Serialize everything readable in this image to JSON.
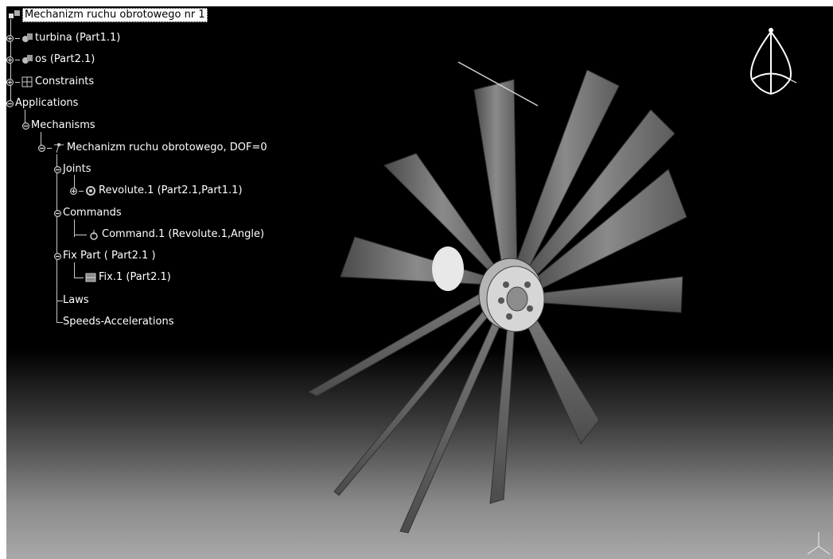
{
  "tree": {
    "root": "Mechanizm ruchu obrotowego nr 1",
    "turbina": "turbina (Part1.1)",
    "os": "os (Part2.1)",
    "constraints": "Constraints",
    "applications": "Applications",
    "mechanisms": "Mechanisms",
    "mechanism": "Mechanizm ruchu obrotowego, DOF=0",
    "joints": "Joints",
    "revolute": "Revolute.1 (Part2.1,Part1.1)",
    "commands": "Commands",
    "command": "Command.1 (Revolute.1,Angle)",
    "fix_part": "Fix Part ( Part2.1 )",
    "fix": "Fix.1 (Part2.1)",
    "laws": "Laws",
    "speeds": "Speeds-Accelerations"
  },
  "icons": {
    "root": "assembly-icon",
    "turbina": "part-gear-icon",
    "os": "part-gear-icon",
    "constraints": "constraints-icon",
    "mechanism": "mechanism-icon",
    "revolute": "revolute-joint-icon",
    "command": "command-icon",
    "fix": "fix-icon",
    "compass": "compass-icon",
    "axes": "axis-triad-icon"
  },
  "colors": {
    "background_top": "#000000",
    "background_bottom": "#a9a9a9",
    "tree_text": "#ffffff",
    "blade": "#6a6a6a"
  }
}
